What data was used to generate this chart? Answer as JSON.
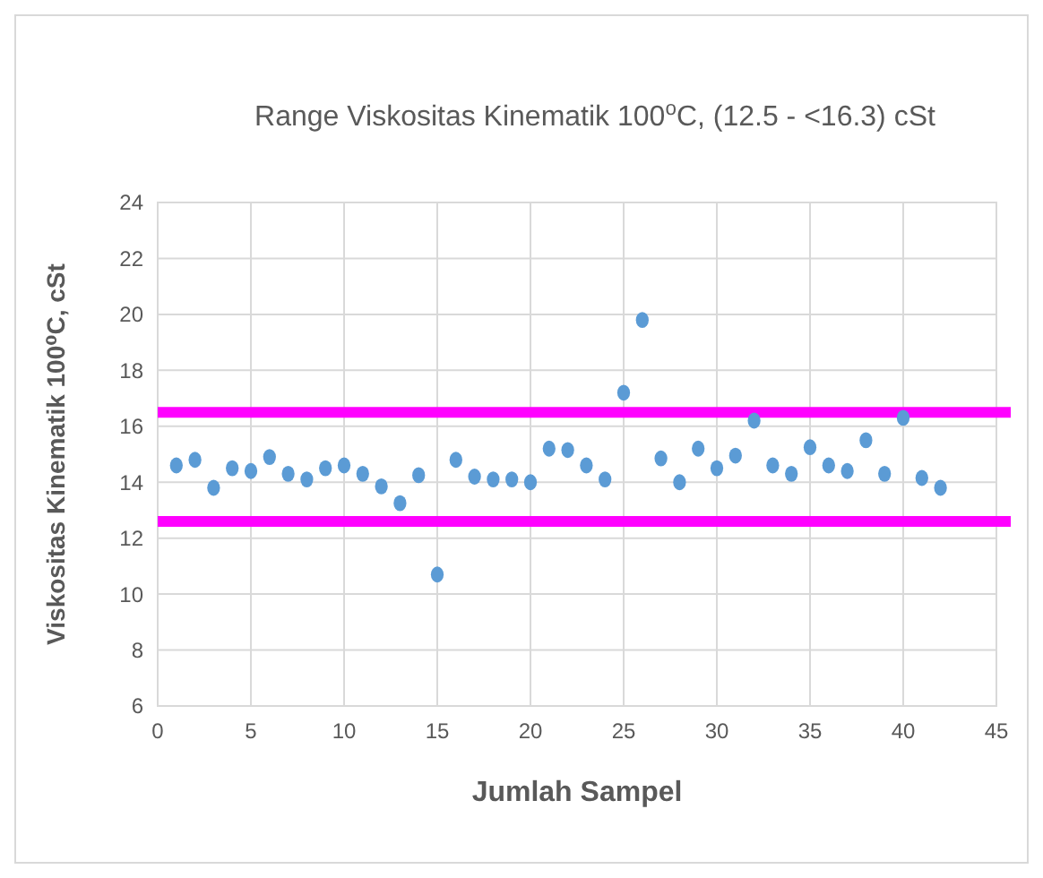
{
  "chart_data": {
    "type": "scatter",
    "title": "Range Viskositas Kinematik 100$^{o}$C, (12.5 - <16.3) cSt",
    "xlabel": "Jumlah Sampel",
    "ylabel": "Viskositas Kinematik 100⁰C, cSt",
    "x": [
      1,
      2,
      3,
      4,
      5,
      6,
      7,
      8,
      9,
      10,
      11,
      12,
      13,
      14,
      15,
      16,
      17,
      18,
      19,
      20,
      21,
      22,
      23,
      24,
      25,
      26,
      27,
      28,
      29,
      30,
      31,
      32,
      33,
      34,
      35,
      36,
      37,
      38,
      39,
      40,
      41,
      42
    ],
    "series": [
      {
        "color": "#5b9bd5",
        "values": [
          14.6,
          14.8,
          13.8,
          14.5,
          14.4,
          14.9,
          14.3,
          14.1,
          14.5,
          14.6,
          14.3,
          13.85,
          13.25,
          14.25,
          10.7,
          14.8,
          14.2,
          14.1,
          14.1,
          14.0,
          15.2,
          15.15,
          14.6,
          14.1,
          17.2,
          19.8,
          14.85,
          14.0,
          15.2,
          14.5,
          14.95,
          16.2,
          14.6,
          14.3,
          15.25,
          14.6,
          14.4,
          15.5,
          14.3,
          16.3,
          14.15,
          13.8
        ]
      }
    ],
    "xlim": [
      0,
      45
    ],
    "xticks": [
      0,
      5,
      10,
      15,
      20,
      25,
      30,
      35,
      40,
      45
    ],
    "ylim": [
      6,
      24
    ],
    "yticks": [
      6,
      8,
      10,
      12,
      14,
      16,
      18,
      20,
      22,
      24
    ],
    "grid": true,
    "marker": "circle",
    "ref_lines": [
      {
        "axis": "y",
        "value": 16.5,
        "color": "#ff00ff"
      },
      {
        "axis": "y",
        "value": 12.6,
        "color": "#ff00ff"
      }
    ]
  }
}
